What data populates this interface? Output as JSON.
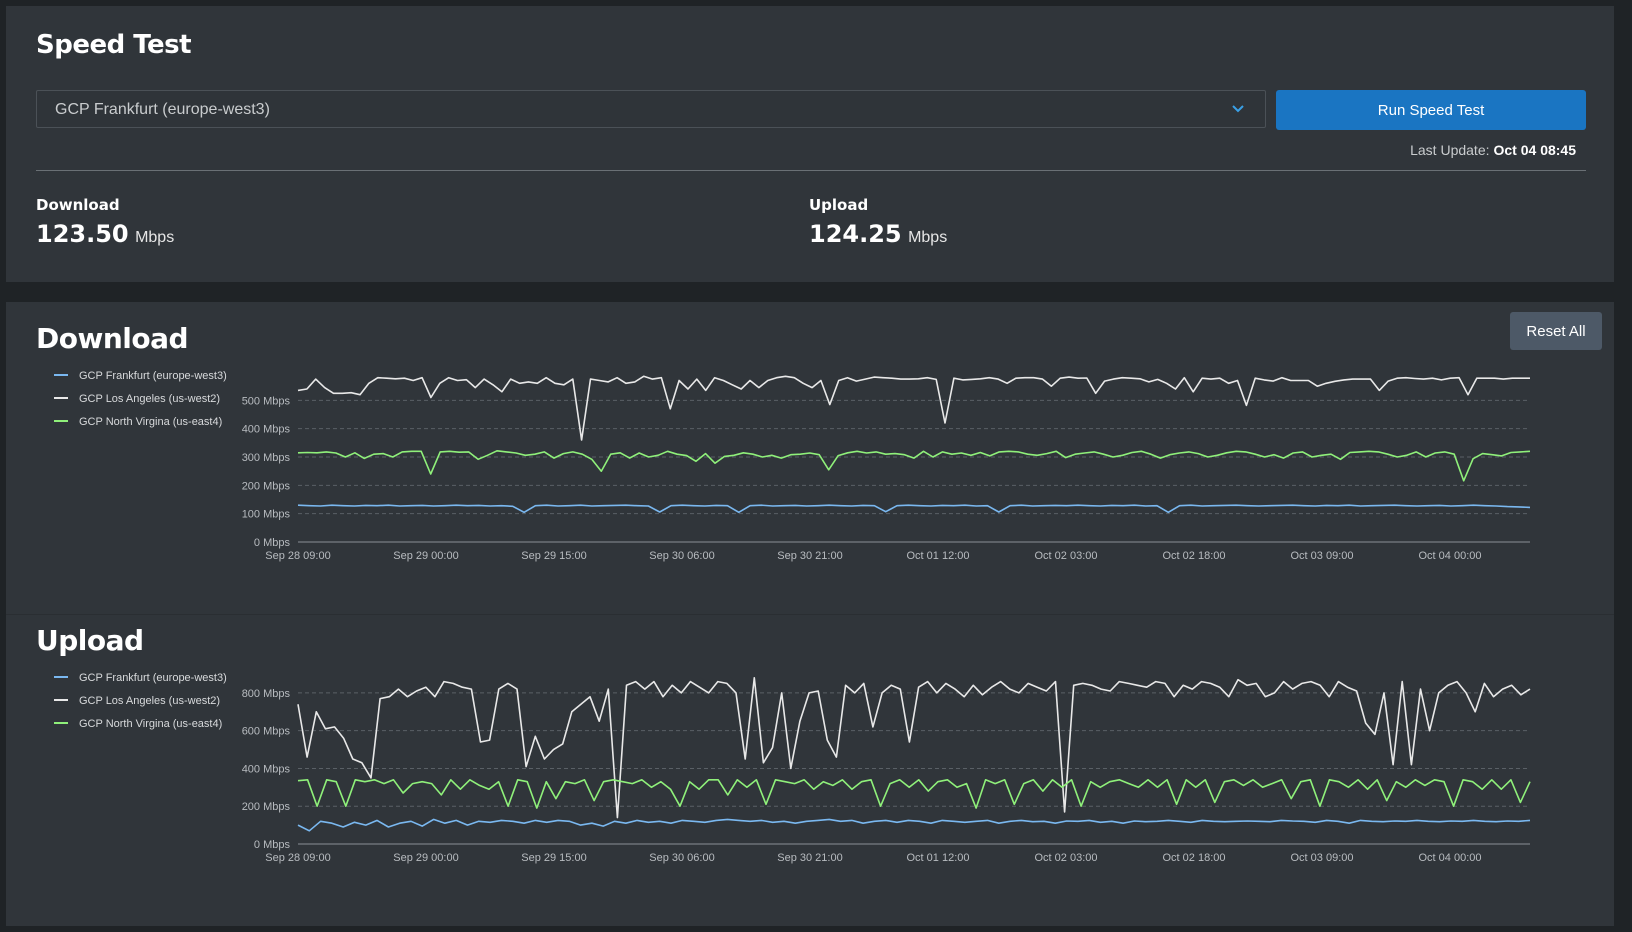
{
  "speed_test": {
    "title": "Speed Test",
    "selected_server": "GCP Frankfurt (europe-west3)",
    "run_button": "Run Speed Test",
    "last_update_label": "Last Update:",
    "last_update_value": "Oct 04 08:45",
    "download": {
      "label": "Download",
      "value": "123.50",
      "unit": "Mbps"
    },
    "upload": {
      "label": "Upload",
      "value": "124.25",
      "unit": "Mbps"
    }
  },
  "reset_button": "Reset All",
  "colors": {
    "frankfurt": "#7ab8f0",
    "los_angeles": "#e8e8e8",
    "virginia": "#8ff07a",
    "accent": "#1a75c2"
  },
  "chart_data": [
    {
      "type": "line",
      "title": "Download",
      "ylim": [
        0,
        600
      ],
      "yticks": [
        0,
        100,
        200,
        300,
        400,
        500
      ],
      "ytick_labels": [
        "0 Mbps",
        "100 Mbps",
        "200 Mbps",
        "300 Mbps",
        "400 Mbps",
        "500 Mbps"
      ],
      "xtick_labels": [
        "Sep 28 09:00",
        "Sep 29 00:00",
        "Sep 29 15:00",
        "Sep 30 06:00",
        "Sep 30 21:00",
        "Oct 01 12:00",
        "Oct 02 03:00",
        "Oct 02 18:00",
        "Oct 03 09:00",
        "Oct 04 00:00"
      ],
      "grid": "horizontal-dashed",
      "legend": "top-left",
      "series": [
        {
          "name": "GCP Frankfurt (europe-west3)",
          "color": "#7ab8f0",
          "values": [
            130,
            128,
            127,
            130,
            128,
            127,
            129,
            128,
            130,
            127,
            128,
            129,
            127,
            128,
            130,
            128,
            129,
            127,
            128,
            126,
            105,
            128,
            130,
            127,
            128,
            130,
            127,
            128,
            129,
            130,
            128,
            127,
            106,
            128,
            130,
            128,
            127,
            129,
            128,
            105,
            128,
            130,
            127,
            128,
            129,
            127,
            128,
            130,
            128,
            127,
            129,
            128,
            107,
            128,
            130,
            128,
            127,
            129,
            128,
            130,
            127,
            128,
            106,
            128,
            130,
            127,
            128,
            129,
            128,
            130,
            128,
            127,
            129,
            128,
            130,
            127,
            128,
            105,
            128,
            130,
            127,
            128,
            129,
            130,
            128,
            127,
            128,
            129,
            130,
            128,
            127,
            129,
            128,
            130,
            127,
            128,
            129,
            130,
            128,
            127,
            128,
            129,
            127,
            128,
            130,
            128,
            127,
            125,
            124,
            122
          ]
        },
        {
          "name": "GCP Los Angeles (us-west2)",
          "color": "#e8e8e8",
          "values": [
            535,
            540,
            575,
            545,
            525,
            525,
            527,
            520,
            560,
            580,
            578,
            576,
            578,
            570,
            580,
            510,
            560,
            580,
            570,
            573,
            545,
            575,
            555,
            530,
            575,
            560,
            565,
            560,
            580,
            560,
            555,
            575,
            360,
            575,
            570,
            565,
            580,
            560,
            565,
            585,
            575,
            580,
            470,
            570,
            540,
            575,
            535,
            580,
            570,
            555,
            540,
            570,
            545,
            570,
            580,
            585,
            580,
            560,
            545,
            570,
            485,
            570,
            580,
            568,
            575,
            582,
            580,
            578,
            575,
            575,
            576,
            580,
            574,
            420,
            578,
            572,
            574,
            576,
            580,
            575,
            560,
            578,
            580,
            580,
            575,
            550,
            578,
            582,
            578,
            579,
            525,
            568,
            575,
            580,
            578,
            576,
            565,
            574,
            560,
            540,
            580,
            530,
            578,
            575,
            578,
            560,
            570,
            482,
            578,
            572,
            568,
            580,
            570,
            570,
            570,
            550,
            560,
            567,
            572,
            575,
            575,
            575,
            535,
            568,
            578,
            580,
            577,
            575,
            578,
            572,
            578,
            580,
            520,
            578,
            578,
            578,
            575,
            578,
            578,
            578
          ]
        },
        {
          "name": "GCP North Virgina (us-east4)",
          "color": "#8ff07a",
          "values": [
            315,
            316,
            315,
            318,
            314,
            300,
            315,
            295,
            310,
            312,
            300,
            318,
            320,
            320,
            240,
            318,
            320,
            317,
            318,
            292,
            306,
            322,
            318,
            314,
            306,
            310,
            318,
            296,
            312,
            318,
            310,
            292,
            250,
            310,
            315,
            296,
            314,
            300,
            306,
            320,
            310,
            305,
            285,
            312,
            278,
            302,
            306,
            315,
            310,
            300,
            306,
            296,
            308,
            310,
            314,
            308,
            255,
            305,
            315,
            320,
            314,
            318,
            310,
            312,
            308,
            296,
            320,
            300,
            318,
            310,
            314,
            306,
            316,
            304,
            318,
            320,
            318,
            310,
            306,
            312,
            320,
            298,
            310,
            314,
            318,
            310,
            300,
            306,
            316,
            320,
            310,
            296,
            308,
            314,
            318,
            312,
            300,
            306,
            315,
            320,
            318,
            310,
            300,
            308,
            296,
            314,
            318,
            300,
            306,
            310,
            292,
            316,
            318,
            320,
            318,
            310,
            300,
            306,
            318,
            300,
            314,
            318,
            310,
            216,
            294,
            312,
            308,
            304,
            316,
            318,
            320
          ]
        }
      ]
    },
    {
      "type": "line",
      "title": "Upload",
      "ylim": [
        0,
        900
      ],
      "yticks": [
        0,
        200,
        400,
        600,
        800
      ],
      "ytick_labels": [
        "0 Mbps",
        "200 Mbps",
        "400 Mbps",
        "600 Mbps",
        "800 Mbps"
      ],
      "xtick_labels": [
        "Sep 28 09:00",
        "Sep 29 00:00",
        "Sep 29 15:00",
        "Sep 30 06:00",
        "Sep 30 21:00",
        "Oct 01 12:00",
        "Oct 02 03:00",
        "Oct 02 18:00",
        "Oct 03 09:00",
        "Oct 04 00:00"
      ],
      "grid": "horizontal-dashed",
      "legend": "top-left",
      "series": [
        {
          "name": "GCP Frankfurt (europe-west3)",
          "color": "#7ab8f0",
          "values": [
            100,
            70,
            120,
            110,
            90,
            115,
            100,
            125,
            90,
            110,
            120,
            95,
            130,
            110,
            125,
            100,
            120,
            115,
            125,
            120,
            110,
            125,
            115,
            125,
            120,
            100,
            110,
            95,
            120,
            110,
            125,
            115,
            120,
            110,
            125,
            120,
            115,
            125,
            130,
            125,
            120,
            125,
            115,
            120,
            110,
            120,
            125,
            130,
            120,
            125,
            110,
            120,
            125,
            115,
            125,
            120,
            110,
            125,
            120,
            115,
            120,
            125,
            110,
            120,
            125,
            118,
            120,
            110,
            122,
            120,
            125,
            115,
            120,
            110,
            122,
            118,
            120,
            125,
            120,
            115,
            125,
            120,
            118,
            120,
            122,
            120,
            118,
            125,
            122,
            120,
            115,
            125,
            120,
            110,
            125,
            120,
            118,
            122,
            120,
            125,
            120,
            118,
            122,
            120,
            125,
            120,
            118,
            122,
            120,
            125
          ]
        },
        {
          "name": "GCP Los Angeles (us-west2)",
          "color": "#e8e8e8",
          "values": [
            740,
            460,
            700,
            610,
            620,
            560,
            450,
            430,
            350,
            770,
            780,
            820,
            780,
            810,
            830,
            780,
            860,
            850,
            830,
            820,
            540,
            550,
            820,
            850,
            820,
            410,
            570,
            450,
            500,
            530,
            700,
            740,
            780,
            650,
            820,
            140,
            840,
            860,
            820,
            860,
            780,
            840,
            800,
            860,
            830,
            800,
            860,
            850,
            800,
            450,
            880,
            430,
            510,
            800,
            400,
            650,
            800,
            810,
            550,
            460,
            840,
            800,
            850,
            620,
            800,
            840,
            820,
            540,
            830,
            860,
            800,
            850,
            820,
            780,
            840,
            790,
            830,
            860,
            820,
            800,
            850,
            830,
            810,
            860,
            170,
            840,
            850,
            840,
            820,
            810,
            860,
            850,
            840,
            830,
            860,
            850,
            780,
            840,
            820,
            860,
            850,
            830,
            780,
            870,
            840,
            850,
            780,
            800,
            860,
            820,
            850,
            860,
            840,
            780,
            860,
            830,
            810,
            640,
            580,
            800,
            420,
            860,
            420,
            820,
            600,
            800,
            840,
            860,
            800,
            700,
            850,
            780,
            820,
            840,
            790,
            820
          ]
        },
        {
          "name": "GCP North Virgina (us-east4)",
          "color": "#8ff07a",
          "values": [
            335,
            340,
            200,
            340,
            330,
            200,
            340,
            330,
            340,
            320,
            340,
            270,
            320,
            330,
            320,
            260,
            340,
            290,
            340,
            310,
            290,
            330,
            200,
            340,
            330,
            190,
            330,
            240,
            330,
            320,
            340,
            230,
            330,
            340,
            330,
            320,
            340,
            300,
            330,
            290,
            200,
            330,
            290,
            340,
            340,
            260,
            340,
            300,
            340,
            210,
            340,
            330,
            320,
            340,
            290,
            330,
            310,
            340,
            290,
            330,
            340,
            200,
            320,
            340,
            300,
            340,
            280,
            330,
            340,
            300,
            320,
            190,
            340,
            320,
            340,
            210,
            320,
            340,
            280,
            340,
            300,
            340,
            200,
            330,
            300,
            330,
            340,
            320,
            300,
            340,
            300,
            340,
            210,
            340,
            300,
            340,
            220,
            330,
            340,
            310,
            340,
            300,
            320,
            340,
            240,
            330,
            340,
            200,
            340,
            330,
            300,
            340,
            290,
            340,
            230,
            330,
            300,
            340,
            310,
            340,
            330,
            200,
            340,
            330,
            290,
            340,
            290,
            340,
            220,
            330
          ]
        }
      ]
    }
  ]
}
